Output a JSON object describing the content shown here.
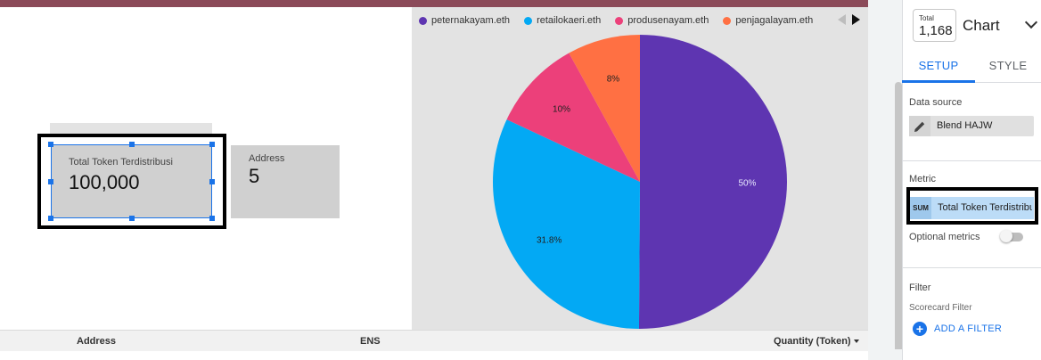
{
  "scorecards": [
    {
      "label": "Total Token Terdistribusi",
      "value": "100,000"
    },
    {
      "label": "Address",
      "value": "5"
    }
  ],
  "chart_data": {
    "type": "pie",
    "title": "",
    "categories": [
      "peternakayam.eth",
      "retailokaeri.eth",
      "produsenayam.eth",
      "penjagalayam.eth"
    ],
    "values": [
      50,
      31.8,
      10,
      8
    ],
    "labels": [
      "50%",
      "31.8%",
      "10%",
      "8%"
    ],
    "colors": [
      "#5e35b1",
      "#03a9f4",
      "#ec407a",
      "#ff7043"
    ],
    "legend_position": "top"
  },
  "table": {
    "columns": [
      "Address",
      "ENS",
      "Quantity (Token)"
    ]
  },
  "panel": {
    "badge_label": "Total",
    "badge_value": "1,168",
    "chart_type": "Chart",
    "tabs": [
      "SETUP",
      "STYLE"
    ],
    "data_source_title": "Data source",
    "data_source_name": "Blend HAJW",
    "metric_title": "Metric",
    "metric_agg": "SUM",
    "metric_name": "Total Token Terdistribusi",
    "optional_metrics": "Optional metrics",
    "filter_title": "Filter",
    "scorecard_filter": "Scorecard Filter",
    "add_filter": "ADD A FILTER"
  },
  "icons": {
    "edit": "pencil-icon",
    "add": "plus-circle-icon",
    "expand": "chevron-down-icon"
  }
}
